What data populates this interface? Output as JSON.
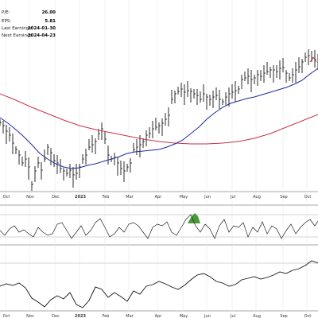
{
  "fundamentals": [
    {
      "label": "P/E:",
      "value": "26.00"
    },
    {
      "label": "EPS:",
      "value": "5.81"
    },
    {
      "label": "Last Earnings:",
      "value": "2024-01-30"
    },
    {
      "label": "Next Earnings:",
      "value": "2024-04-23"
    }
  ],
  "chart_data": {
    "type": "line",
    "title": "",
    "panels": [
      "price",
      "momentum",
      "relative"
    ],
    "x_tick_labels": [
      "Oct",
      "Nov",
      "Dec",
      "2023",
      "Feb",
      "Mar",
      "Apr",
      "May",
      "Jun",
      "Jul",
      "Aug",
      "Sep",
      "Oct"
    ],
    "y_tick_labels": [],
    "grid": true,
    "price_series": {
      "name": "",
      "x": [
        0,
        4,
        8,
        12,
        16,
        20,
        24,
        28,
        32,
        36,
        40,
        44,
        48,
        52,
        56,
        60,
        64,
        68,
        72,
        76,
        80,
        84,
        88,
        92,
        96,
        100,
        104,
        108,
        112,
        116,
        120,
        124,
        128,
        132,
        136,
        140,
        144,
        148,
        152,
        156,
        160,
        164,
        168,
        172,
        176,
        180,
        184,
        188,
        192,
        196,
        200,
        204,
        208,
        212,
        216,
        220,
        224,
        228,
        232,
        236,
        240,
        244,
        248,
        252,
        256,
        260,
        264,
        268,
        272,
        276,
        280,
        284,
        288,
        292,
        296,
        300,
        304,
        308,
        312,
        316,
        320,
        324,
        328,
        332,
        336,
        340,
        344,
        348,
        352,
        356,
        360,
        364,
        368,
        372,
        376,
        380,
        384,
        388,
        392,
        396,
        400
      ],
      "y": [
        154,
        158,
        165,
        170,
        180,
        188,
        195,
        205,
        200,
        210,
        232,
        215,
        205,
        214,
        200,
        185,
        192,
        202,
        205,
        212,
        215,
        218,
        214,
        220,
        218,
        210,
        200,
        195,
        185,
        182,
        178,
        168,
        162,
        175,
        195,
        200,
        198,
        205,
        212,
        215,
        210,
        205,
        188,
        185,
        182,
        178,
        170,
        168,
        162,
        160,
        158,
        155,
        150,
        145,
        125,
        118,
        115,
        112,
        116,
        114,
        115,
        118,
        120,
        125,
        118,
        122,
        125,
        122,
        120,
        125,
        128,
        122,
        118,
        116,
        114,
        112,
        100,
        98,
        96,
        100,
        98,
        94,
        96,
        92,
        90,
        88,
        88,
        90,
        86,
        85,
        92,
        98,
        94,
        88,
        84,
        78,
        72,
        70,
        74,
        75,
        72
      ]
    },
    "moving_average_short": {
      "name": "",
      "x": [
        0,
        10,
        20,
        30,
        40,
        50,
        60,
        70,
        80,
        90,
        100,
        110,
        120,
        130,
        140,
        150,
        160,
        170,
        180,
        190,
        200,
        210,
        220,
        230,
        240,
        250,
        260,
        270,
        280,
        290,
        300,
        310,
        320,
        330,
        340,
        350,
        360,
        370,
        380,
        390,
        400
      ],
      "y": [
        148,
        155,
        163,
        172,
        182,
        193,
        200,
        206,
        210,
        212,
        211,
        208,
        206,
        203,
        200,
        197,
        193,
        191,
        190,
        189,
        188,
        185,
        181,
        176,
        168,
        160,
        150,
        142,
        135,
        130,
        127,
        124,
        122,
        119,
        116,
        113,
        110,
        106,
        101,
        93,
        86
      ]
    },
    "moving_average_long": {
      "name": "",
      "x": [
        0,
        20,
        40,
        60,
        80,
        100,
        120,
        140,
        160,
        180,
        200,
        220,
        240,
        260,
        280,
        300,
        320,
        340,
        360,
        380,
        400
      ],
      "y": [
        118,
        126,
        135,
        143,
        151,
        158,
        163,
        167,
        171,
        175,
        178,
        180,
        181,
        181,
        180,
        178,
        174,
        168,
        160,
        152,
        144
      ]
    },
    "momentum_series": {
      "name": "",
      "x": [
        0,
        6,
        12,
        18,
        24,
        30,
        36,
        42,
        48,
        54,
        60,
        66,
        72,
        78,
        84,
        90,
        96,
        102,
        108,
        114,
        120,
        126,
        132,
        138,
        144,
        150,
        156,
        162,
        168,
        174,
        180,
        186,
        192,
        198,
        204,
        210,
        216,
        222,
        228,
        234,
        240,
        246,
        252,
        258,
        264,
        270,
        276,
        282,
        288,
        294,
        300,
        306,
        312,
        318,
        324,
        330,
        336,
        342,
        348,
        354,
        360,
        366,
        372,
        378,
        384,
        390,
        396,
        400
      ],
      "y": [
        290,
        296,
        288,
        284,
        292,
        289,
        294,
        298,
        286,
        292,
        296,
        294,
        282,
        280,
        290,
        300,
        292,
        284,
        296,
        290,
        280,
        275,
        286,
        298,
        294,
        286,
        292,
        282,
        280,
        284,
        292,
        300,
        286,
        282,
        284,
        279,
        292,
        296,
        286,
        276,
        270,
        284,
        292,
        282,
        288,
        300,
        284,
        276,
        292,
        284,
        286,
        280,
        298,
        286,
        292,
        279,
        294,
        284,
        288,
        300,
        290,
        282,
        294,
        286,
        280,
        276,
        284,
        278
      ]
    },
    "relative_series": {
      "name": "",
      "x": [
        0,
        8,
        16,
        24,
        32,
        40,
        48,
        56,
        64,
        72,
        80,
        88,
        96,
        104,
        112,
        120,
        128,
        136,
        144,
        152,
        160,
        168,
        176,
        184,
        192,
        200,
        208,
        216,
        224,
        232,
        240,
        248,
        256,
        264,
        272,
        280,
        288,
        296,
        304,
        312,
        320,
        328,
        336,
        344,
        352,
        360,
        368,
        376,
        384,
        392,
        400
      ],
      "y": [
        360,
        357,
        359,
        356,
        362,
        375,
        380,
        386,
        377,
        372,
        376,
        368,
        383,
        387,
        378,
        361,
        364,
        374,
        368,
        373,
        379,
        366,
        370,
        360,
        358,
        354,
        357,
        361,
        364,
        359,
        352,
        346,
        344,
        348,
        354,
        356,
        360,
        358,
        352,
        350,
        348,
        351,
        349,
        346,
        342,
        344,
        340,
        338,
        334,
        328,
        331
      ]
    }
  }
}
